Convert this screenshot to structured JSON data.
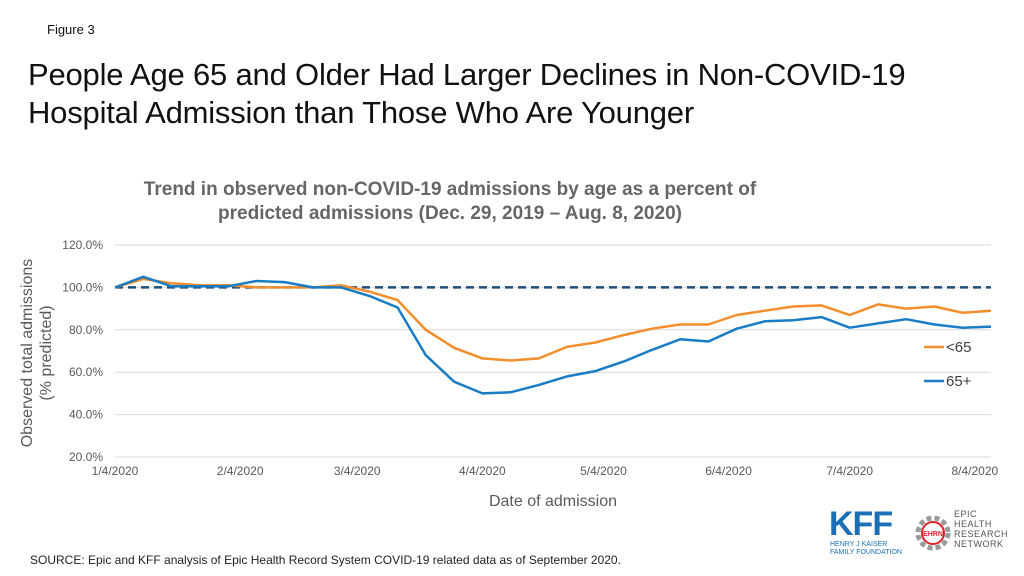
{
  "figure_label": "Figure 3",
  "headline": "People Age 65 and Older Had Larger Declines in Non-COVID-19 Hospital Admission than Those Who Are Younger",
  "source": "SOURCE: Epic and KFF analysis of Epic Health Record System COVID-19 related data as of September 2020.",
  "logo": {
    "kff": "KFF",
    "kff_sub": "HENRY J KAISER FAMILY FOUNDATION",
    "ehrn_badge": "EHRN",
    "ehrn_lines": [
      "EPIC",
      "HEALTH",
      "RESEARCH",
      "NETWORK"
    ]
  },
  "chart_data": {
    "type": "line",
    "title": "Trend in observed non-COVID-19 admissions by age as a percent of predicted admissions (Dec. 29, 2019 – Aug. 8, 2020)",
    "xlabel": "Date of admission",
    "ylabel": "Observed total admissions (% predicted)",
    "ylabel_lines": [
      "Observed total admissions",
      "(% predicted)"
    ],
    "ylim": [
      20,
      120
    ],
    "yticks": [
      20,
      40,
      60,
      80,
      100,
      120
    ],
    "ytick_labels": [
      "20.0%",
      "40.0%",
      "60.0%",
      "80.0%",
      "100.0%",
      "120.0%"
    ],
    "xlim": [
      "2020-01-04",
      "2020-08-08"
    ],
    "xticks": [
      "2020-01-04",
      "2020-02-04",
      "2020-03-04",
      "2020-04-04",
      "2020-05-04",
      "2020-06-04",
      "2020-07-04",
      "2020-08-04"
    ],
    "xtick_labels": [
      "1/4/2020",
      "2/4/2020",
      "3/4/2020",
      "4/4/2020",
      "5/4/2020",
      "6/4/2020",
      "7/4/2020",
      "8/4/2020"
    ],
    "grid": "horizontal",
    "legend_position": "right",
    "reference_line": {
      "y": 100,
      "style": "dashed",
      "color": "#1f4e79"
    },
    "x": [
      "2020-01-04",
      "2020-01-11",
      "2020-01-18",
      "2020-01-25",
      "2020-02-01",
      "2020-02-08",
      "2020-02-15",
      "2020-02-22",
      "2020-02-29",
      "2020-03-07",
      "2020-03-14",
      "2020-03-21",
      "2020-03-28",
      "2020-04-04",
      "2020-04-11",
      "2020-04-18",
      "2020-04-25",
      "2020-05-02",
      "2020-05-09",
      "2020-05-16",
      "2020-05-23",
      "2020-05-30",
      "2020-06-06",
      "2020-06-13",
      "2020-06-20",
      "2020-06-27",
      "2020-07-04",
      "2020-07-11",
      "2020-07-18",
      "2020-07-25",
      "2020-08-01",
      "2020-08-08"
    ],
    "series": [
      {
        "name": "<65",
        "color": "#f28e2b",
        "values": [
          100,
          104,
          102,
          101,
          101,
          100,
          100,
          100,
          101,
          98,
          94,
          80,
          71.5,
          66.5,
          65.5,
          66.5,
          72,
          74,
          77.5,
          80.5,
          82.5,
          82.5,
          87,
          89,
          91,
          91.5,
          87,
          92,
          90,
          91,
          88,
          89
        ]
      },
      {
        "name": "65+",
        "color": "#1a7cc4",
        "values": [
          100,
          105,
          100.5,
          100.5,
          100.5,
          103,
          102.5,
          100,
          100,
          96,
          90.5,
          68,
          55.5,
          50,
          50.5,
          54,
          58,
          60.5,
          65,
          70.5,
          75.5,
          74.5,
          80.5,
          84,
          84.5,
          86,
          81,
          83,
          85,
          82.5,
          81,
          81.5
        ]
      }
    ]
  }
}
